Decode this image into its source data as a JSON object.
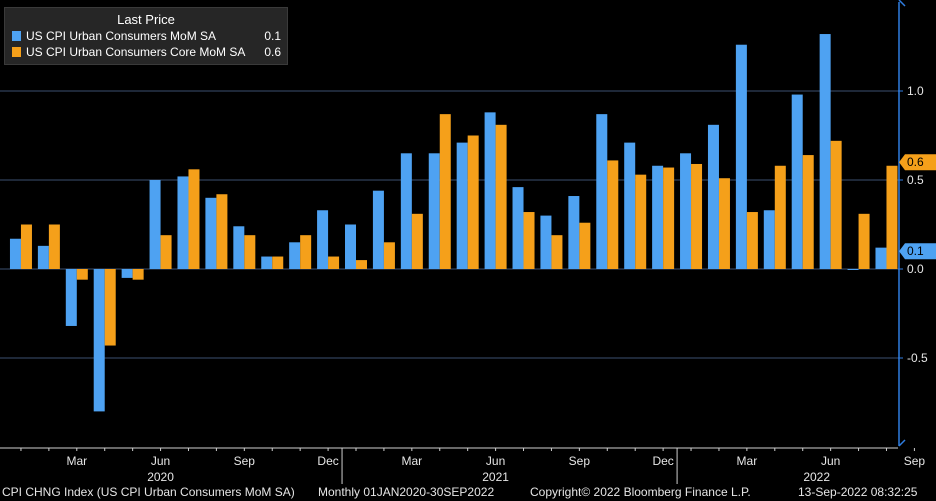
{
  "colors": {
    "background": "#000000",
    "grid": "#3d4f70",
    "cpi": "#4ea2f2",
    "core": "#f5a01a",
    "axis": "#2f7de0"
  },
  "legend": {
    "title": "Last Price",
    "series": [
      {
        "label": "US CPI Urban Consumers MoM SA",
        "value": "0.1"
      },
      {
        "label": "US CPI Urban Consumers Core MoM SA",
        "value": "0.6"
      }
    ]
  },
  "footer": {
    "index_label": "CPI CHNG Index (US CPI Urban Consumers MoM SA)",
    "range": "Monthly 01JAN2020-30SEP2022",
    "copyright": "Copyright© 2022 Bloomberg Finance L.P.",
    "timestamp": "13-Sep-2022 08:32:25"
  },
  "chart_data": {
    "type": "bar",
    "title": "",
    "xlabel": "",
    "ylabel": "",
    "ylim": [
      -0.98,
      1.5
    ],
    "y_ticks": [
      "1.0",
      "0.5",
      "0.0",
      "-0.5"
    ],
    "y_tick_values": [
      1.0,
      0.5,
      0.0,
      -0.5
    ],
    "last_value_badges": [
      {
        "series": 1,
        "label": "0.6",
        "value": 0.6
      },
      {
        "series": 0,
        "label": "0.1",
        "value": 0.1
      }
    ],
    "categories": [
      "Jan 2020",
      "Feb 2020",
      "Mar 2020",
      "Apr 2020",
      "May 2020",
      "Jun 2020",
      "Jul 2020",
      "Aug 2020",
      "Sep 2020",
      "Oct 2020",
      "Nov 2020",
      "Dec 2020",
      "Jan 2021",
      "Feb 2021",
      "Mar 2021",
      "Apr 2021",
      "May 2021",
      "Jun 2021",
      "Jul 2021",
      "Aug 2021",
      "Sep 2021",
      "Oct 2021",
      "Nov 2021",
      "Dec 2021",
      "Jan 2022",
      "Feb 2022",
      "Mar 2022",
      "Apr 2022",
      "May 2022",
      "Jun 2022",
      "Jul 2022",
      "Aug 2022",
      "Sep 2022"
    ],
    "month_ticks": [
      {
        "index": 2,
        "label": "Mar"
      },
      {
        "index": 5,
        "label": "Jun"
      },
      {
        "index": 8,
        "label": "Sep"
      },
      {
        "index": 11,
        "label": "Dec"
      },
      {
        "index": 14,
        "label": "Mar"
      },
      {
        "index": 17,
        "label": "Jun"
      },
      {
        "index": 20,
        "label": "Sep"
      },
      {
        "index": 23,
        "label": "Dec"
      },
      {
        "index": 26,
        "label": "Mar"
      },
      {
        "index": 29,
        "label": "Jun"
      },
      {
        "index": 32,
        "label": "Sep"
      }
    ],
    "year_labels": [
      {
        "index": 5,
        "label": "2020"
      },
      {
        "index": 17,
        "label": "2021"
      },
      {
        "index": 28.5,
        "label": "2022"
      }
    ],
    "year_separators": [
      11.5,
      23.5
    ],
    "series": [
      {
        "name": "US CPI Urban Consumers MoM SA",
        "values": [
          0.17,
          0.13,
          -0.32,
          -0.8,
          -0.05,
          0.5,
          0.52,
          0.4,
          0.24,
          0.07,
          0.15,
          0.33,
          0.25,
          0.44,
          0.65,
          0.65,
          0.71,
          0.88,
          0.46,
          0.3,
          0.41,
          0.87,
          0.71,
          0.58,
          0.65,
          0.81,
          1.26,
          0.33,
          0.98,
          1.32,
          0.0,
          0.12,
          null
        ]
      },
      {
        "name": "US CPI Urban Consumers Core MoM SA",
        "values": [
          0.25,
          0.25,
          -0.06,
          -0.43,
          -0.06,
          0.19,
          0.56,
          0.42,
          0.19,
          0.07,
          0.19,
          0.07,
          0.05,
          0.15,
          0.31,
          0.87,
          0.75,
          0.81,
          0.32,
          0.19,
          0.26,
          0.61,
          0.53,
          0.57,
          0.59,
          0.51,
          0.32,
          0.58,
          0.64,
          0.72,
          0.31,
          0.58,
          null
        ]
      }
    ]
  }
}
